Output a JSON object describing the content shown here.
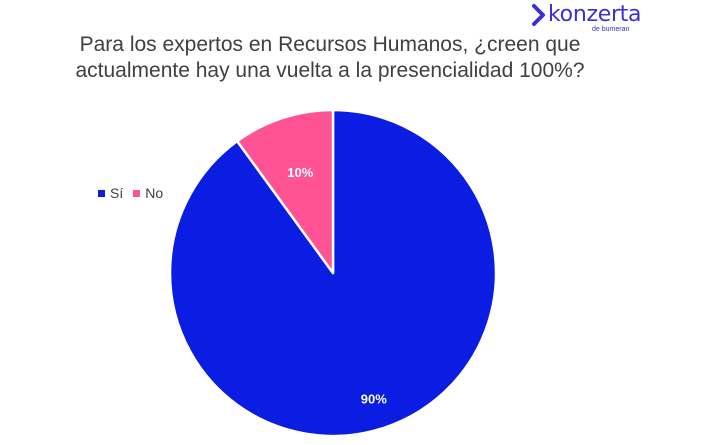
{
  "brand": {
    "name": "konzerta",
    "sub": "de bumeran",
    "color": "#3d2fd6"
  },
  "chart_data": {
    "type": "pie",
    "title_lines": [
      "Para los expertos en Recursos Humanos, ¿creen que",
      "actualmente hay una vuelta a la presencialidad 100%?"
    ],
    "categories": [
      "Sí",
      "No"
    ],
    "values": [
      90,
      10
    ],
    "labels": [
      "90%",
      "10%"
    ],
    "colors": [
      "#0b1de3",
      "#ff5395"
    ],
    "legend_position": "left"
  }
}
